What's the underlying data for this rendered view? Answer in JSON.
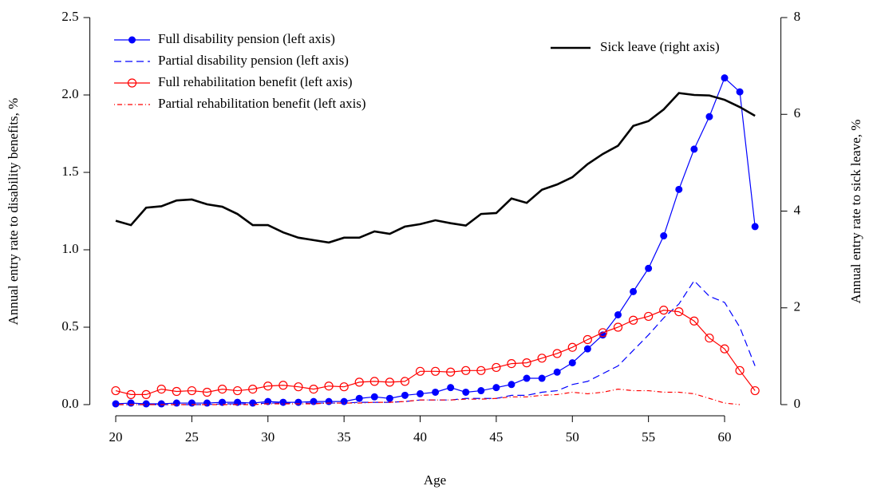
{
  "chart_data": {
    "type": "line",
    "x_label": "Age",
    "y_label": "Annual entry rate to disability benefits, %",
    "y2_label": "Annual entry rate to sick leave, %",
    "x": [
      20,
      21,
      22,
      23,
      24,
      25,
      26,
      27,
      28,
      29,
      30,
      31,
      32,
      33,
      34,
      35,
      36,
      37,
      38,
      39,
      40,
      41,
      42,
      43,
      44,
      45,
      46,
      47,
      48,
      49,
      50,
      51,
      52,
      53,
      54,
      55,
      56,
      57,
      58,
      59,
      60,
      61,
      62
    ],
    "xlim": [
      18.3,
      63.7
    ],
    "xticks": [
      20,
      25,
      30,
      35,
      40,
      45,
      50,
      55,
      60
    ],
    "ylim": [
      0,
      2.5
    ],
    "yticks": [
      {
        "value": 0,
        "label": "0.0"
      },
      {
        "value": 0.5,
        "label": "0.5"
      },
      {
        "value": 1,
        "label": "1.0"
      },
      {
        "value": 1.5,
        "label": "1.5"
      },
      {
        "value": 2,
        "label": "2.0"
      },
      {
        "value": 2.5,
        "label": "2.5"
      }
    ],
    "y2lim": [
      0,
      8
    ],
    "y2ticks": [
      0,
      2,
      4,
      6,
      8
    ],
    "series": [
      {
        "name": "Full disability pension (left axis)",
        "color": "#0000ff",
        "line": "solid",
        "marker": "filled-circle",
        "axis": "y",
        "values": [
          0.005,
          0.01,
          0.005,
          0.005,
          0.01,
          0.01,
          0.01,
          0.015,
          0.015,
          0.01,
          0.02,
          0.015,
          0.015,
          0.02,
          0.02,
          0.02,
          0.04,
          0.05,
          0.04,
          0.06,
          0.07,
          0.08,
          0.11,
          0.08,
          0.09,
          0.11,
          0.13,
          0.17,
          0.17,
          0.21,
          0.27,
          0.36,
          0.45,
          0.58,
          0.73,
          0.88,
          1.09,
          1.39,
          1.65,
          1.86,
          2.11,
          2.02,
          1.15
        ]
      },
      {
        "name": "Partial disability pension (left axis)",
        "color": "#0000ff",
        "line": "dashed",
        "marker": "none",
        "axis": "y",
        "values": [
          0,
          0,
          0,
          0,
          0,
          0,
          0,
          0.005,
          0.005,
          0.005,
          0.01,
          0.01,
          0.01,
          0.01,
          0.01,
          0.01,
          0.015,
          0.015,
          0.015,
          0.02,
          0.03,
          0.03,
          0.03,
          0.04,
          0.04,
          0.04,
          0.06,
          0.06,
          0.08,
          0.09,
          0.13,
          0.15,
          0.2,
          0.25,
          0.35,
          0.45,
          0.56,
          0.65,
          0.8,
          0.7,
          0.66,
          0.5,
          0.25
        ]
      },
      {
        "name": "Full rehabilitation benefit (left axis)",
        "color": "#ff0000",
        "line": "solid",
        "marker": "open-circle",
        "axis": "y",
        "values": [
          0.09,
          0.065,
          0.065,
          0.1,
          0.085,
          0.09,
          0.08,
          0.1,
          0.09,
          0.1,
          0.12,
          0.125,
          0.115,
          0.1,
          0.12,
          0.115,
          0.145,
          0.15,
          0.145,
          0.15,
          0.215,
          0.215,
          0.21,
          0.22,
          0.22,
          0.24,
          0.265,
          0.27,
          0.3,
          0.33,
          0.37,
          0.42,
          0.465,
          0.5,
          0.545,
          0.57,
          0.61,
          0.6,
          0.54,
          0.43,
          0.36,
          0.22,
          0.09
        ]
      },
      {
        "name": "Partial rehabilitation benefit (left axis)",
        "color": "#ff0000",
        "line": "dotdash",
        "marker": "none",
        "axis": "y",
        "values": [
          0,
          0,
          0,
          0,
          0,
          0,
          0,
          0,
          0,
          0,
          0.005,
          0.005,
          0.005,
          0.005,
          0.01,
          0.01,
          0.01,
          0.015,
          0.015,
          0.02,
          0.03,
          0.03,
          0.03,
          0.035,
          0.035,
          0.04,
          0.05,
          0.05,
          0.06,
          0.065,
          0.08,
          0.07,
          0.08,
          0.1,
          0.09,
          0.09,
          0.08,
          0.08,
          0.07,
          0.04,
          0.01,
          0,
          null
        ]
      },
      {
        "name": "Sick leave (right axis)",
        "color": "#000000",
        "line": "thick",
        "marker": "none",
        "axis": "y2",
        "values": [
          3.8,
          3.71,
          4.07,
          4.1,
          4.22,
          4.24,
          4.14,
          4.09,
          3.94,
          3.71,
          3.71,
          3.56,
          3.45,
          3.4,
          3.35,
          3.45,
          3.45,
          3.58,
          3.53,
          3.68,
          3.73,
          3.81,
          3.75,
          3.7,
          3.94,
          3.96,
          4.26,
          4.17,
          4.44,
          4.55,
          4.7,
          4.97,
          5.18,
          5.35,
          5.76,
          5.86,
          6.1,
          6.44,
          6.4,
          6.39,
          6.3,
          6.15,
          5.97
        ]
      }
    ]
  }
}
